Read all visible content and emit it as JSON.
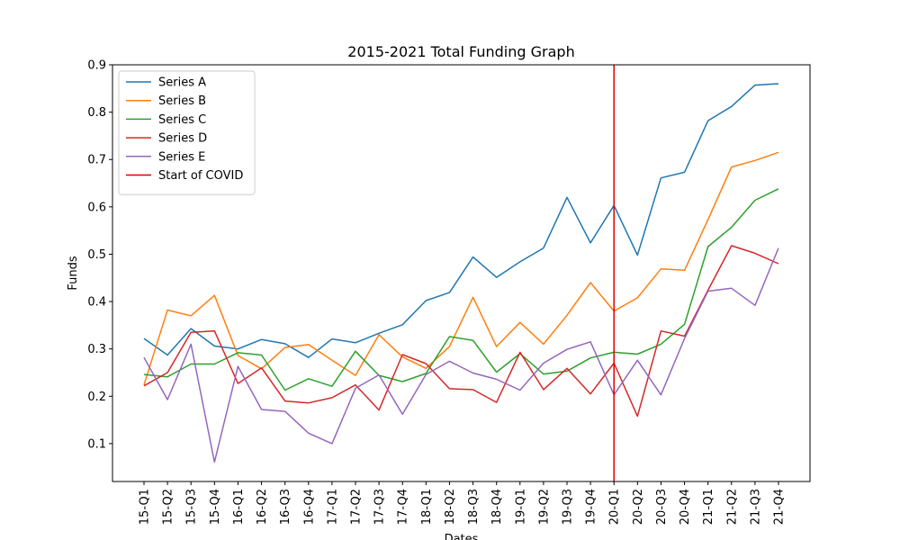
{
  "chart_data": {
    "type": "line",
    "title": "2015-2021 Total Funding Graph",
    "xlabel": "Dates",
    "ylabel": "Funds",
    "ylim": [
      0.02,
      0.9
    ],
    "yticks": [
      0.1,
      0.2,
      0.3,
      0.4,
      0.5,
      0.6,
      0.7,
      0.8,
      0.9
    ],
    "ytick_labels": [
      "0.1",
      "0.2",
      "0.3",
      "0.4",
      "0.5",
      "0.6",
      "0.7",
      "0.8",
      "0.9"
    ],
    "grid": false,
    "legend_position": "top-left",
    "categories": [
      "15-Q1",
      "15-Q2",
      "15-Q3",
      "15-Q4",
      "16-Q1",
      "16-Q2",
      "16-Q3",
      "16-Q4",
      "17-Q1",
      "17-Q2",
      "17-Q3",
      "17-Q4",
      "18-Q1",
      "18-Q2",
      "18-Q3",
      "18-Q4",
      "19-Q1",
      "19-Q2",
      "19-Q3",
      "19-Q4",
      "20-Q1",
      "20-Q2",
      "20-Q3",
      "20-Q4",
      "21-Q1",
      "21-Q2",
      "21-Q3",
      "21-Q4"
    ],
    "series": [
      {
        "name": "Series A",
        "color": "#1f77b4",
        "values": [
          0.322,
          0.287,
          0.343,
          0.306,
          0.3,
          0.32,
          0.311,
          0.282,
          0.321,
          0.313,
          0.333,
          0.351,
          0.402,
          0.419,
          0.494,
          0.451,
          0.484,
          0.513,
          0.62,
          0.524,
          0.603,
          0.498,
          0.661,
          0.673,
          0.782,
          0.812,
          0.857,
          0.86
        ]
      },
      {
        "name": "Series B",
        "color": "#ff7f0e",
        "values": [
          0.224,
          0.382,
          0.37,
          0.413,
          0.286,
          0.258,
          0.303,
          0.309,
          0.276,
          0.244,
          0.33,
          0.283,
          0.259,
          0.305,
          0.409,
          0.305,
          0.356,
          0.31,
          0.371,
          0.44,
          0.38,
          0.408,
          0.469,
          0.466,
          0.573,
          0.684,
          0.698,
          0.715
        ]
      },
      {
        "name": "Series C",
        "color": "#2ca02c",
        "values": [
          0.246,
          0.241,
          0.268,
          0.268,
          0.292,
          0.287,
          0.213,
          0.237,
          0.221,
          0.295,
          0.244,
          0.231,
          0.248,
          0.326,
          0.318,
          0.251,
          0.29,
          0.247,
          0.253,
          0.281,
          0.293,
          0.289,
          0.31,
          0.352,
          0.516,
          0.557,
          0.614,
          0.638
        ]
      },
      {
        "name": "Series D",
        "color": "#d62728",
        "values": [
          0.222,
          0.25,
          0.335,
          0.338,
          0.227,
          0.26,
          0.19,
          0.186,
          0.197,
          0.224,
          0.171,
          0.288,
          0.269,
          0.216,
          0.214,
          0.187,
          0.293,
          0.214,
          0.259,
          0.205,
          0.27,
          0.158,
          0.338,
          0.327,
          0.424,
          0.518,
          0.502,
          0.48
        ]
      },
      {
        "name": "Series E",
        "color": "#9467bd",
        "values": [
          0.282,
          0.193,
          0.31,
          0.061,
          0.263,
          0.172,
          0.168,
          0.122,
          0.1,
          0.217,
          0.245,
          0.162,
          0.246,
          0.274,
          0.249,
          0.236,
          0.213,
          0.27,
          0.299,
          0.315,
          0.203,
          0.276,
          0.203,
          0.322,
          0.422,
          0.428,
          0.392,
          0.513
        ]
      }
    ],
    "vline": {
      "name": "Start of COVID",
      "x": "20-Q1",
      "color": "#dd0000"
    }
  }
}
